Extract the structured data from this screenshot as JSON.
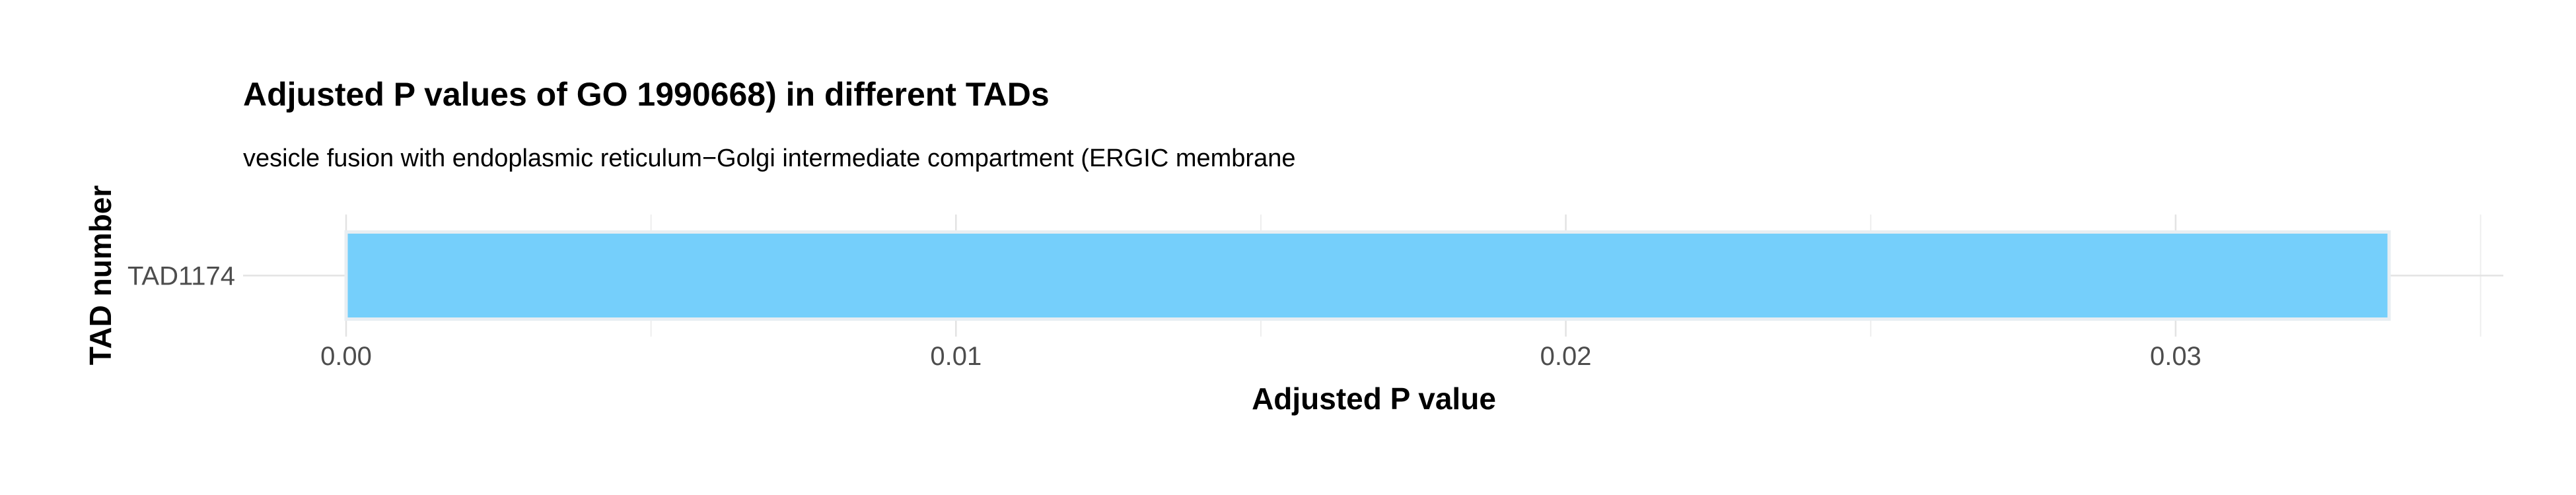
{
  "chart_data": {
    "type": "bar",
    "orientation": "horizontal",
    "title": "Adjusted P values of GO 1990668) in different TADs",
    "subtitle": "vesicle fusion with endoplasmic reticulum−Golgi intermediate compartment (ERGIC membrane",
    "xlabel": "Adjusted P value",
    "ylabel": "TAD number",
    "categories": [
      "TAD1174"
    ],
    "values": [
      0.0335
    ],
    "xlim": [
      0,
      0.0352
    ],
    "x_ticks": [
      0.0,
      0.01,
      0.02,
      0.03
    ],
    "x_tick_labels": [
      "0.00",
      "0.01",
      "0.02",
      "0.03"
    ],
    "x_minor_ticks": [
      0.005,
      0.015,
      0.025,
      0.035
    ],
    "grid": true,
    "legend": "none",
    "colors": {
      "bar_fill": "#75cffb",
      "bar_outline": "#e8eef2",
      "grid_major": "#e3e3e3",
      "grid_minor": "#eeeeee"
    }
  }
}
